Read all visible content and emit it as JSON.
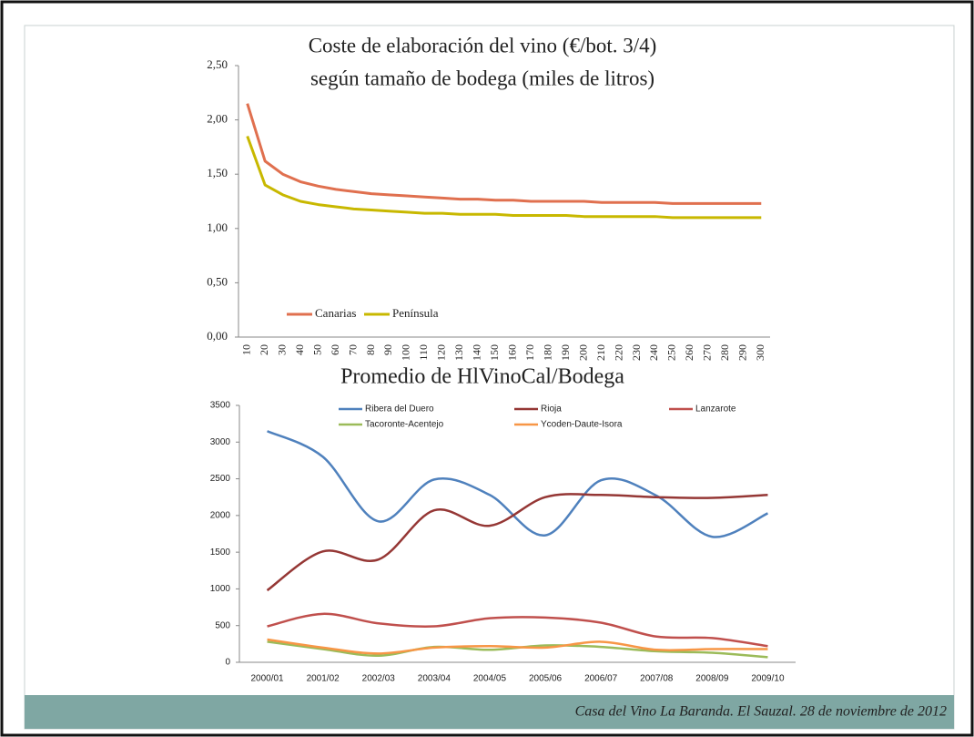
{
  "chart_data": [
    {
      "type": "line",
      "title": "Coste de elaboración del vino (€/bot. 3/4)",
      "subtitle": "según tamaño de bodega (miles de litros)",
      "categories": [
        "10",
        "20",
        "30",
        "40",
        "50",
        "60",
        "70",
        "80",
        "90",
        "100",
        "110",
        "120",
        "130",
        "140",
        "150",
        "160",
        "170",
        "180",
        "190",
        "200",
        "210",
        "220",
        "230",
        "240",
        "250",
        "260",
        "270",
        "280",
        "290",
        "300"
      ],
      "series": [
        {
          "name": "Canarias",
          "color": "#e0704f",
          "values": [
            2.15,
            1.62,
            1.5,
            1.43,
            1.39,
            1.36,
            1.34,
            1.32,
            1.31,
            1.3,
            1.29,
            1.28,
            1.27,
            1.27,
            1.26,
            1.26,
            1.25,
            1.25,
            1.25,
            1.25,
            1.24,
            1.24,
            1.24,
            1.24,
            1.23,
            1.23,
            1.23,
            1.23,
            1.23,
            1.23
          ]
        },
        {
          "name": "Península",
          "color": "#c8b800",
          "values": [
            1.85,
            1.4,
            1.31,
            1.25,
            1.22,
            1.2,
            1.18,
            1.17,
            1.16,
            1.15,
            1.14,
            1.14,
            1.13,
            1.13,
            1.13,
            1.12,
            1.12,
            1.12,
            1.12,
            1.11,
            1.11,
            1.11,
            1.11,
            1.11,
            1.1,
            1.1,
            1.1,
            1.1,
            1.1,
            1.1
          ]
        }
      ],
      "ylim": [
        0,
        2.5
      ],
      "yticks": [
        {
          "value": 0,
          "label": "0,00"
        },
        {
          "value": 0.5,
          "label": "0,50"
        },
        {
          "value": 1,
          "label": "1,00"
        },
        {
          "value": 1.5,
          "label": "1,50"
        },
        {
          "value": 2,
          "label": "2,00"
        },
        {
          "value": 2.5,
          "label": "2,50"
        }
      ],
      "grid": false,
      "legend": "bottom-left",
      "smooth": false
    },
    {
      "type": "line",
      "title": "Promedio de HlVinoCal/Bodega",
      "categories": [
        "2000/01",
        "2001/02",
        "2002/03",
        "2003/04",
        "2004/05",
        "2005/06",
        "2006/07",
        "2007/08",
        "2008/09",
        "2009/10"
      ],
      "series": [
        {
          "name": "Ribera del Duero",
          "color": "#4f81bd",
          "values": [
            3150,
            2800,
            1920,
            2490,
            2280,
            1730,
            2480,
            2270,
            1710,
            2030
          ]
        },
        {
          "name": "Rioja",
          "color": "#953735",
          "values": [
            980,
            1510,
            1400,
            2070,
            1860,
            2250,
            2280,
            2250,
            2240,
            2280
          ]
        },
        {
          "name": "Lanzarote",
          "color": "#c0504d",
          "values": [
            490,
            660,
            530,
            490,
            600,
            610,
            540,
            350,
            330,
            220
          ]
        },
        {
          "name": "Tacoronte-Acentejo",
          "color": "#9bbb59",
          "values": [
            280,
            180,
            90,
            210,
            170,
            230,
            210,
            150,
            130,
            70
          ]
        },
        {
          "name": "Ycoden-Daute-Isora",
          "color": "#f79646",
          "values": [
            310,
            200,
            120,
            200,
            220,
            200,
            280,
            170,
            180,
            180
          ]
        }
      ],
      "ylim": [
        0,
        3500
      ],
      "yticks": [
        0,
        500,
        1000,
        1500,
        2000,
        2500,
        3000,
        3500
      ],
      "grid": false,
      "legend": "top",
      "smooth": true
    }
  ],
  "footer": "Casa del Vino La Baranda.  El Sauzal. 28 de noviembre de 2012"
}
